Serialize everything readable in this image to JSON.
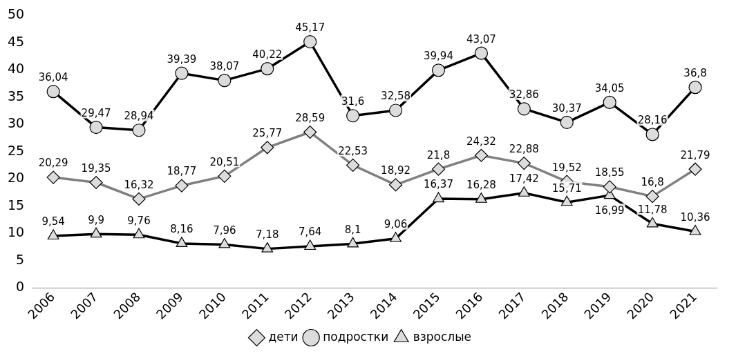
{
  "chart_data": {
    "type": "line",
    "categories": [
      "2006",
      "2007",
      "2008",
      "2009",
      "2010",
      "2011",
      "2012",
      "2013",
      "2014",
      "2015",
      "2016",
      "2017",
      "2018",
      "2019",
      "2020",
      "2021"
    ],
    "series": [
      {
        "name": "дети",
        "color": "#808080",
        "marker": "diamond",
        "values": [
          20.29,
          19.35,
          16.32,
          18.77,
          20.51,
          25.77,
          28.59,
          22.53,
          18.92,
          21.8,
          24.32,
          22.88,
          19.52,
          18.55,
          16.8,
          21.79
        ],
        "value_labels": [
          "20,29",
          "19,35",
          "16,32",
          "18,77",
          "20,51",
          "25,77",
          "28,59",
          "22,53",
          "18,92",
          "21,8",
          "24,32",
          "22,88",
          "19,52",
          "18,55",
          "16,8",
          "21,79"
        ]
      },
      {
        "name": "подростки",
        "color": "#000000",
        "marker": "circle",
        "values": [
          36.04,
          29.47,
          28.94,
          39.39,
          38.07,
          40.22,
          45.17,
          31.6,
          32.58,
          39.94,
          43.07,
          32.86,
          30.37,
          34.05,
          28.16,
          36.8
        ],
        "value_labels": [
          "36,04",
          "29,47",
          "28,94",
          "39,39",
          "38,07",
          "40,22",
          "45,17",
          "31,6",
          "32,58",
          "39,94",
          "43,07",
          "32,86",
          "30,37",
          "34,05",
          "28,16",
          "36,8"
        ]
      },
      {
        "name": "взрослые",
        "color": "#000000",
        "marker": "triangle",
        "values": [
          9.54,
          9.9,
          9.76,
          8.16,
          7.96,
          7.18,
          7.64,
          8.1,
          9.06,
          16.37,
          16.28,
          17.42,
          15.71,
          16.99,
          11.78,
          10.36
        ],
        "value_labels": [
          "9,54",
          "9,9",
          "9,76",
          "8,16",
          "7,96",
          "7,18",
          "7,64",
          "8,1",
          "9,06",
          "16,37",
          "16,28",
          "17,42",
          "15,71",
          "16,99",
          "11,78",
          "10,36"
        ]
      }
    ],
    "ylim": [
      0,
      50
    ],
    "yticks": [
      0,
      5,
      10,
      15,
      20,
      25,
      30,
      35,
      40,
      45,
      50
    ],
    "grid": false,
    "legend": "bottom"
  }
}
